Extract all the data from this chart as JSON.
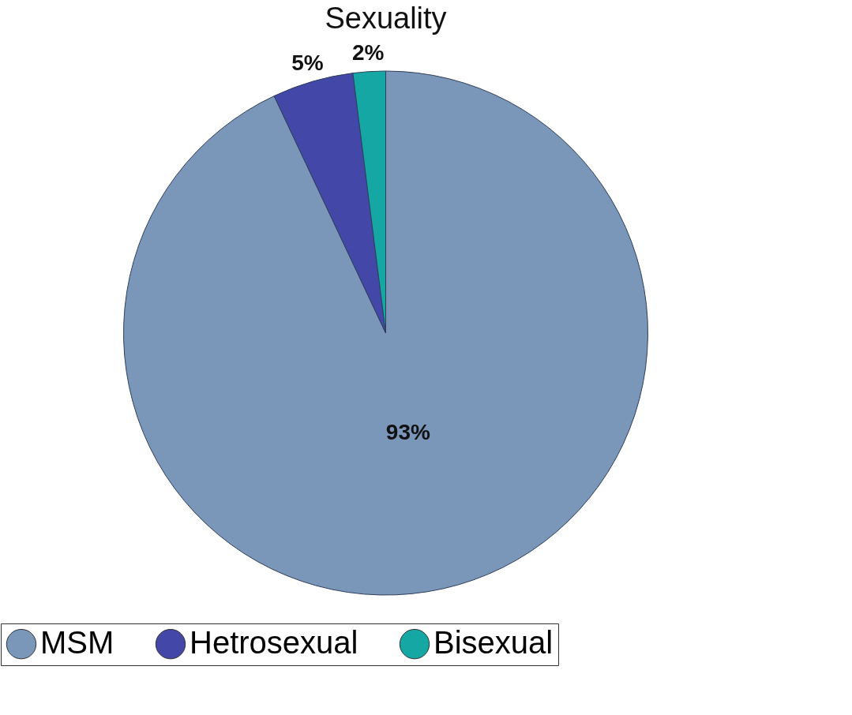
{
  "chart_data": {
    "type": "pie",
    "title": "Sexuality",
    "categories": [
      "MSM",
      "Hetrosexual",
      "Bisexual"
    ],
    "values": [
      93,
      5,
      2
    ],
    "colors": [
      "#7a96b8",
      "#4347a8",
      "#14a7a3"
    ],
    "value_labels": [
      "93%",
      "5%",
      "2%"
    ],
    "legend": "bottom"
  }
}
